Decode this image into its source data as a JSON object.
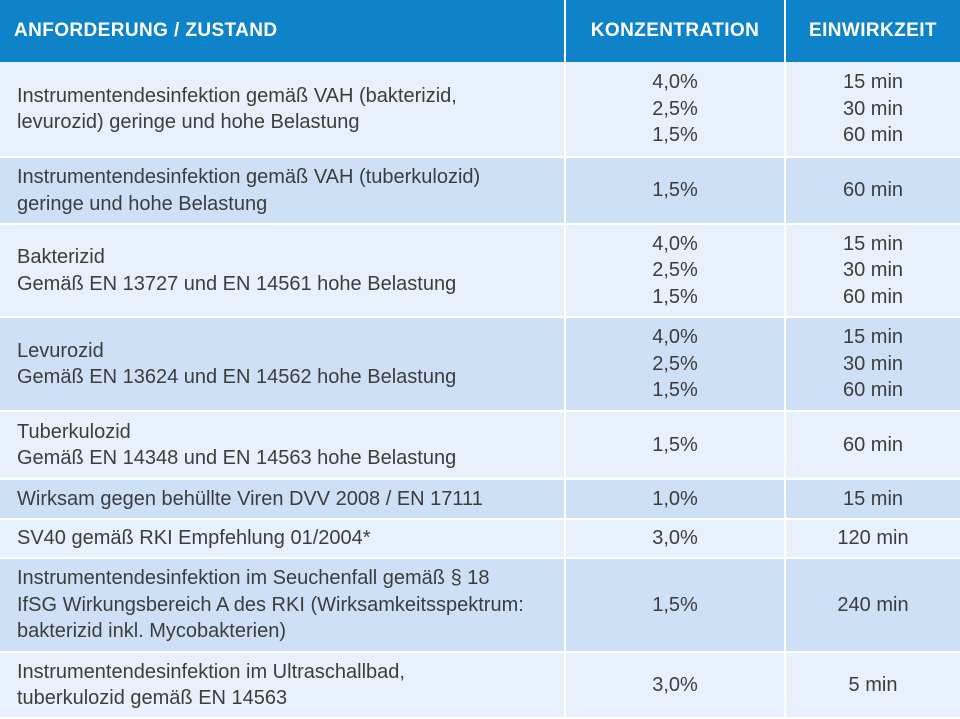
{
  "header": {
    "col_requirement": "ANFORDERUNG / ZUSTAND",
    "col_concentration": "KONZENTRATION",
    "col_time": "EINWIRKZEIT"
  },
  "rows": [
    {
      "requirement": [
        "Instrumentendesinfektion gemäß VAH (bakterizid,",
        "levurozid) geringe und hohe Belastung"
      ],
      "concentration": [
        "4,0%",
        "2,5%",
        "1,5%"
      ],
      "time": [
        "15 min",
        "30 min",
        "60 min"
      ]
    },
    {
      "requirement": [
        "Instrumentendesinfektion gemäß VAH (tuberkulozid)",
        "geringe und hohe Belastung"
      ],
      "concentration": [
        "1,5%"
      ],
      "time": [
        "60 min"
      ]
    },
    {
      "requirement": [
        "Bakterizid",
        "Gemäß EN 13727 und EN 14561 hohe Belastung"
      ],
      "concentration": [
        "4,0%",
        "2,5%",
        "1,5%"
      ],
      "time": [
        "15 min",
        "30 min",
        "60 min"
      ]
    },
    {
      "requirement": [
        "Levurozid",
        "Gemäß EN 13624 und EN 14562 hohe Belastung"
      ],
      "concentration": [
        "4,0%",
        "2,5%",
        "1,5%"
      ],
      "time": [
        "15 min",
        "30 min",
        "60 min"
      ]
    },
    {
      "requirement": [
        "Tuberkulozid",
        "Gemäß EN 14348 und EN 14563 hohe Belastung"
      ],
      "concentration": [
        "1,5%"
      ],
      "time": [
        "60 min"
      ]
    },
    {
      "requirement": [
        "Wirksam gegen behüllte Viren DVV 2008 / EN 17111"
      ],
      "concentration": [
        "1,0%"
      ],
      "time": [
        "15 min"
      ]
    },
    {
      "requirement": [
        "SV40 gemäß RKI Empfehlung 01/2004*"
      ],
      "concentration": [
        "3,0%"
      ],
      "time": [
        "120 min"
      ]
    },
    {
      "requirement": [
        "Instrumentendesinfektion im Seuchenfall gemäß § 18",
        "IfSG Wirkungsbereich A des RKI (Wirksamkeitsspektrum:",
        "bakterizid inkl. Mycobakterien)"
      ],
      "concentration": [
        "1,5%"
      ],
      "time": [
        "240 min"
      ]
    },
    {
      "requirement": [
        "Instrumentendesinfektion im Ultraschallbad,",
        "tuberkulozid gemäß EN 14563"
      ],
      "concentration": [
        "3,0%"
      ],
      "time": [
        "5 min"
      ]
    }
  ]
}
